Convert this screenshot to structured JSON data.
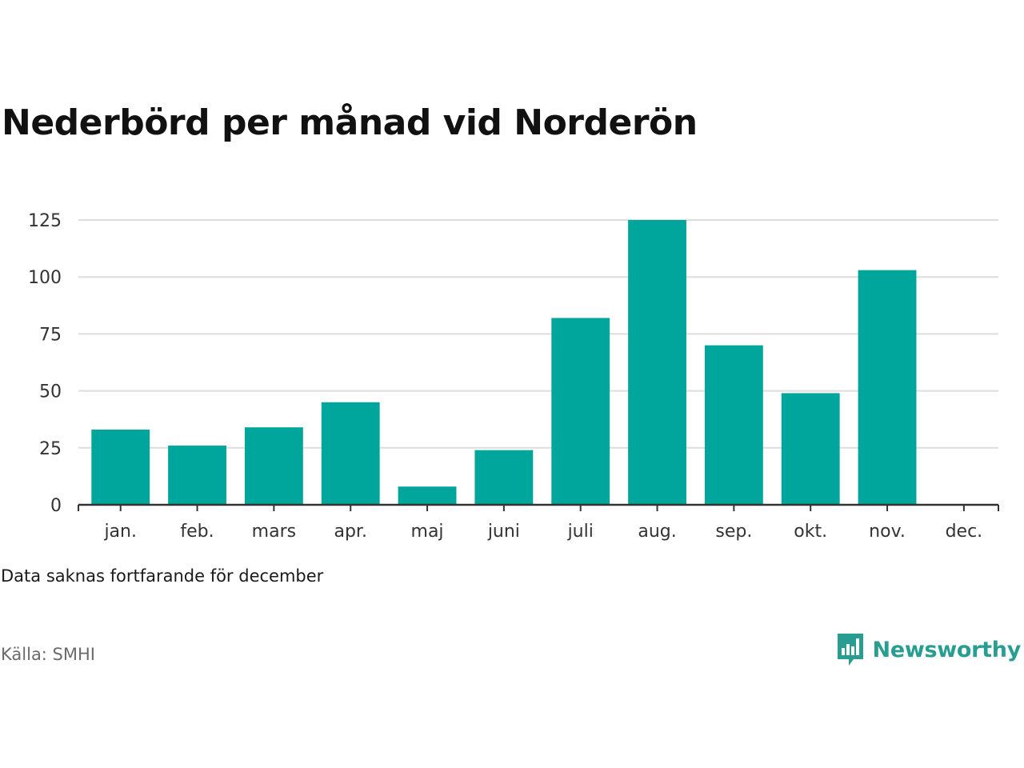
{
  "title": "Nederbörd per månad vid Norderön",
  "note": "Data saknas fortfarande för december",
  "source": "Källa: SMHI",
  "brand": {
    "name": "Newsworthy",
    "logo_icon": "newsworthy-logo-icon",
    "color": "#2a9d93"
  },
  "colors": {
    "bar": "#00a59b",
    "grid": "#dddddd",
    "axis": "#333333",
    "tick_label": "#333333"
  },
  "chart_data": {
    "type": "bar",
    "title": "Nederbörd per månad vid Norderön",
    "xlabel": "",
    "ylabel": "",
    "categories": [
      "jan.",
      "feb.",
      "mars",
      "apr.",
      "maj",
      "juni",
      "juli",
      "aug.",
      "sep.",
      "okt.",
      "nov.",
      "dec."
    ],
    "values": [
      33,
      26,
      34,
      45,
      8,
      24,
      82,
      125,
      70,
      49,
      103,
      null
    ],
    "ylim": [
      0,
      125
    ],
    "yticks": [
      0,
      25,
      50,
      75,
      100,
      125
    ],
    "grid": true,
    "legend": "none"
  }
}
